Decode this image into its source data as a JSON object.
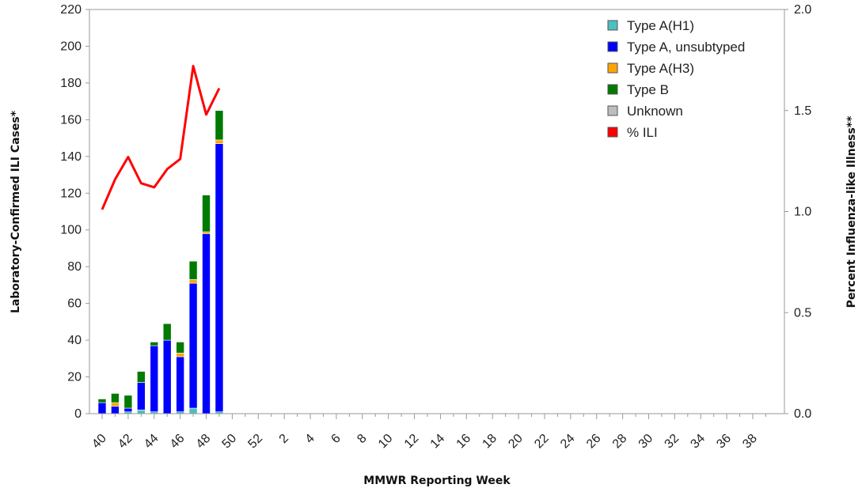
{
  "chart_data": {
    "type": "bar",
    "subtype": "stacked-bar-with-line-secondary-axis",
    "title": "",
    "xlabel": "MMWR Reporting Week",
    "ylabel": "Laboratory-Confirmed ILI Cases*",
    "y2label": "Percent Influenza-like Illness**",
    "ylim": [
      0,
      220
    ],
    "y2lim": [
      0,
      2.0
    ],
    "yticks": [
      0,
      20,
      40,
      60,
      80,
      100,
      120,
      140,
      160,
      180,
      200,
      220
    ],
    "y2ticks": [
      "0.0",
      "0.5",
      "1.0",
      "1.5",
      "2.0"
    ],
    "weeks": [
      40,
      41,
      42,
      43,
      44,
      45,
      46,
      47,
      48,
      49,
      50,
      51,
      52,
      1,
      2,
      3,
      4,
      5,
      6,
      7,
      8,
      9,
      10,
      11,
      12,
      13,
      14,
      15,
      16,
      17,
      18,
      19,
      20,
      21,
      22,
      23,
      24,
      25,
      26,
      27,
      28,
      29,
      30,
      31,
      32,
      33,
      34,
      35,
      36,
      37,
      38,
      39
    ],
    "xtick_labels": [
      "40",
      "42",
      "44",
      "46",
      "48",
      "50",
      "52",
      "2",
      "4",
      "6",
      "8",
      "10",
      "12",
      "14",
      "16",
      "18",
      "20",
      "22",
      "24",
      "26",
      "28",
      "30",
      "32",
      "34",
      "36",
      "38"
    ],
    "grid": false,
    "legend_position": "top-right",
    "series": [
      {
        "name": "Type A(H1)",
        "color": "#4dbfbf",
        "values": [
          0,
          0,
          1,
          2,
          1,
          0,
          1,
          3,
          0,
          1
        ]
      },
      {
        "name": "Type A, unsubtyped",
        "color": "#0000ff",
        "values": [
          6,
          4,
          2,
          15,
          36,
          40,
          30,
          68,
          98,
          146
        ]
      },
      {
        "name": "Type A(H3)",
        "color": "#ffa500",
        "values": [
          0,
          2,
          0,
          0,
          0,
          0,
          2,
          2,
          1,
          2
        ]
      },
      {
        "name": "Type B",
        "color": "#007a00",
        "values": [
          2,
          5,
          7,
          6,
          2,
          9,
          6,
          10,
          20,
          16
        ]
      },
      {
        "name": "Unknown",
        "color": "#bdbdbd",
        "values": [
          0,
          0,
          0,
          0,
          0,
          0,
          0,
          0,
          0,
          0
        ]
      }
    ],
    "line_series": {
      "name": "% ILI",
      "color": "#ff0000",
      "axis": "right",
      "values": [
        1.01,
        1.16,
        1.27,
        1.14,
        1.12,
        1.21,
        1.26,
        1.72,
        1.48,
        1.61
      ]
    }
  }
}
